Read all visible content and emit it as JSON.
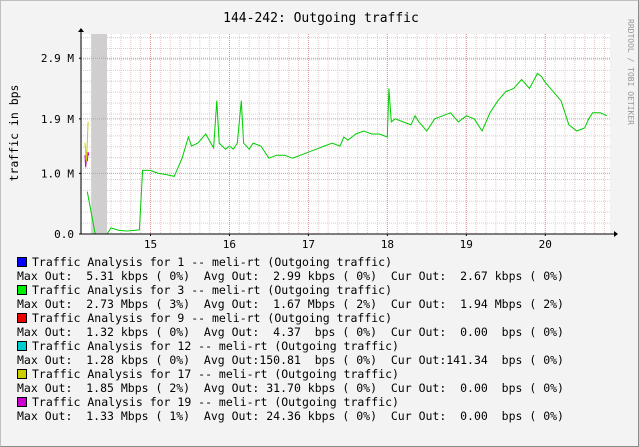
{
  "title": "144-242: Outgoing traffic",
  "watermark": "RRDTOOL / TOBI OETIKER",
  "chart_data": {
    "type": "line",
    "title": "144-242: Outgoing traffic",
    "ylabel": "traffic in bps",
    "xlabel": "",
    "ylim": [
      0,
      3300000
    ],
    "xlim": [
      14.12,
      20.82
    ],
    "y_ticks": [
      {
        "value": 0,
        "label": "0.0"
      },
      {
        "value": 1000000,
        "label": "1.0 M"
      },
      {
        "value": 1900000,
        "label": "1.9 M"
      },
      {
        "value": 2900000,
        "label": "2.9 M"
      }
    ],
    "x_ticks": [
      {
        "value": 15,
        "label": "15"
      },
      {
        "value": 16,
        "label": "16"
      },
      {
        "value": 17,
        "label": "17"
      },
      {
        "value": 18,
        "label": "18"
      },
      {
        "value": 19,
        "label": "19"
      },
      {
        "value": 20,
        "label": "20"
      }
    ],
    "grid": true,
    "unknown_data_band": [
      14.25,
      14.45
    ],
    "series": [
      {
        "name": "Traffic Analysis for 3 -- meli-rt (Outgoing traffic)",
        "color": "#00cc00",
        "points": [
          [
            14.2,
            700000
          ],
          [
            14.3,
            0
          ],
          [
            14.45,
            0
          ],
          [
            14.5,
            100000
          ],
          [
            14.6,
            60000
          ],
          [
            14.7,
            50000
          ],
          [
            14.8,
            60000
          ],
          [
            14.86,
            70000
          ],
          [
            14.9,
            1050000
          ],
          [
            15.0,
            1050000
          ],
          [
            15.1,
            1000000
          ],
          [
            15.2,
            980000
          ],
          [
            15.3,
            950000
          ],
          [
            15.4,
            1250000
          ],
          [
            15.48,
            1600000
          ],
          [
            15.52,
            1450000
          ],
          [
            15.6,
            1500000
          ],
          [
            15.7,
            1650000
          ],
          [
            15.8,
            1420000
          ],
          [
            15.84,
            2200000
          ],
          [
            15.87,
            1500000
          ],
          [
            15.95,
            1400000
          ],
          [
            16.0,
            1450000
          ],
          [
            16.05,
            1400000
          ],
          [
            16.1,
            1500000
          ],
          [
            16.15,
            2200000
          ],
          [
            16.18,
            1500000
          ],
          [
            16.25,
            1400000
          ],
          [
            16.3,
            1500000
          ],
          [
            16.4,
            1450000
          ],
          [
            16.5,
            1250000
          ],
          [
            16.6,
            1300000
          ],
          [
            16.7,
            1300000
          ],
          [
            16.8,
            1250000
          ],
          [
            16.9,
            1300000
          ],
          [
            17.0,
            1350000
          ],
          [
            17.1,
            1400000
          ],
          [
            17.2,
            1450000
          ],
          [
            17.3,
            1500000
          ],
          [
            17.4,
            1450000
          ],
          [
            17.45,
            1600000
          ],
          [
            17.5,
            1550000
          ],
          [
            17.6,
            1650000
          ],
          [
            17.7,
            1700000
          ],
          [
            17.8,
            1650000
          ],
          [
            17.9,
            1650000
          ],
          [
            18.0,
            1600000
          ],
          [
            18.02,
            2400000
          ],
          [
            18.05,
            1850000
          ],
          [
            18.1,
            1900000
          ],
          [
            18.2,
            1850000
          ],
          [
            18.3,
            1800000
          ],
          [
            18.35,
            1950000
          ],
          [
            18.4,
            1850000
          ],
          [
            18.5,
            1700000
          ],
          [
            18.6,
            1900000
          ],
          [
            18.7,
            1950000
          ],
          [
            18.8,
            2000000
          ],
          [
            18.9,
            1850000
          ],
          [
            19.0,
            1950000
          ],
          [
            19.1,
            1900000
          ],
          [
            19.2,
            1700000
          ],
          [
            19.3,
            2000000
          ],
          [
            19.4,
            2200000
          ],
          [
            19.5,
            2350000
          ],
          [
            19.6,
            2400000
          ],
          [
            19.7,
            2550000
          ],
          [
            19.8,
            2400000
          ],
          [
            19.9,
            2650000
          ],
          [
            19.95,
            2600000
          ],
          [
            20.0,
            2500000
          ],
          [
            20.1,
            2350000
          ],
          [
            20.2,
            2200000
          ],
          [
            20.3,
            1800000
          ],
          [
            20.4,
            1700000
          ],
          [
            20.5,
            1750000
          ],
          [
            20.55,
            1900000
          ],
          [
            20.6,
            2000000
          ],
          [
            20.7,
            2000000
          ],
          [
            20.78,
            1950000
          ]
        ]
      },
      {
        "name": "Traffic Analysis for 19 -- meli-rt (Outgoing traffic)",
        "color": "#cc00cc",
        "points": [
          [
            14.17,
            1300000
          ],
          [
            14.18,
            1100000
          ],
          [
            14.19,
            1250000
          ],
          [
            14.2,
            1200000
          ],
          [
            14.21,
            1350000
          ],
          [
            14.22,
            1300000
          ]
        ]
      },
      {
        "name": "Traffic Analysis for 17 -- meli-rt (Outgoing traffic)",
        "color": "#cccc00",
        "points": [
          [
            14.17,
            1500000
          ],
          [
            14.19,
            1200000
          ],
          [
            14.21,
            1850000
          ]
        ]
      },
      {
        "name": "Traffic Analysis for 1 -- meli-rt (Outgoing traffic)",
        "color": "#0000ff",
        "points": [
          [
            14.17,
            0
          ],
          [
            20.78,
            0
          ]
        ]
      },
      {
        "name": "Traffic Analysis for 9 -- meli-rt (Outgoing traffic)",
        "color": "#cc0000",
        "points": [
          [
            14.17,
            0
          ],
          [
            20.78,
            0
          ]
        ]
      },
      {
        "name": "Traffic Analysis for 12 -- meli-rt (Outgoing traffic)",
        "color": "#00cccc",
        "points": [
          [
            14.17,
            0
          ],
          [
            20.78,
            0
          ]
        ]
      }
    ]
  },
  "legend": [
    {
      "color": "#0000ff",
      "title": "Traffic Analysis for 1 -- meli-rt (Outgoing traffic)",
      "stats": "Max Out:  5.31 kbps ( 0%)  Avg Out:  2.99 kbps ( 0%)  Cur Out:  2.67 kbps ( 0%)"
    },
    {
      "color": "#00ee00",
      "title": "Traffic Analysis for 3 -- meli-rt (Outgoing traffic)",
      "stats": "Max Out:  2.73 Mbps ( 3%)  Avg Out:  1.67 Mbps ( 2%)  Cur Out:  1.94 Mbps ( 2%)"
    },
    {
      "color": "#ee0000",
      "title": "Traffic Analysis for 9 -- meli-rt (Outgoing traffic)",
      "stats": "Max Out:  1.32 kbps ( 0%)  Avg Out:  4.37  bps ( 0%)  Cur Out:  0.00  bps ( 0%)"
    },
    {
      "color": "#00cccc",
      "title": "Traffic Analysis for 12 -- meli-rt (Outgoing traffic)",
      "stats": "Max Out:  1.28 kbps ( 0%)  Avg Out:150.81  bps ( 0%)  Cur Out:141.34  bps ( 0%)"
    },
    {
      "color": "#cccc00",
      "title": "Traffic Analysis for 17 -- meli-rt (Outgoing traffic)",
      "stats": "Max Out:  1.85 Mbps ( 2%)  Avg Out: 31.70 kbps ( 0%)  Cur Out:  0.00  bps ( 0%)"
    },
    {
      "color": "#cc00cc",
      "title": "Traffic Analysis for 19 -- meli-rt (Outgoing traffic)",
      "stats": "Max Out:  1.33 Mbps ( 1%)  Avg Out: 24.36 kbps ( 0%)  Cur Out:  0.00  bps ( 0%)"
    }
  ]
}
